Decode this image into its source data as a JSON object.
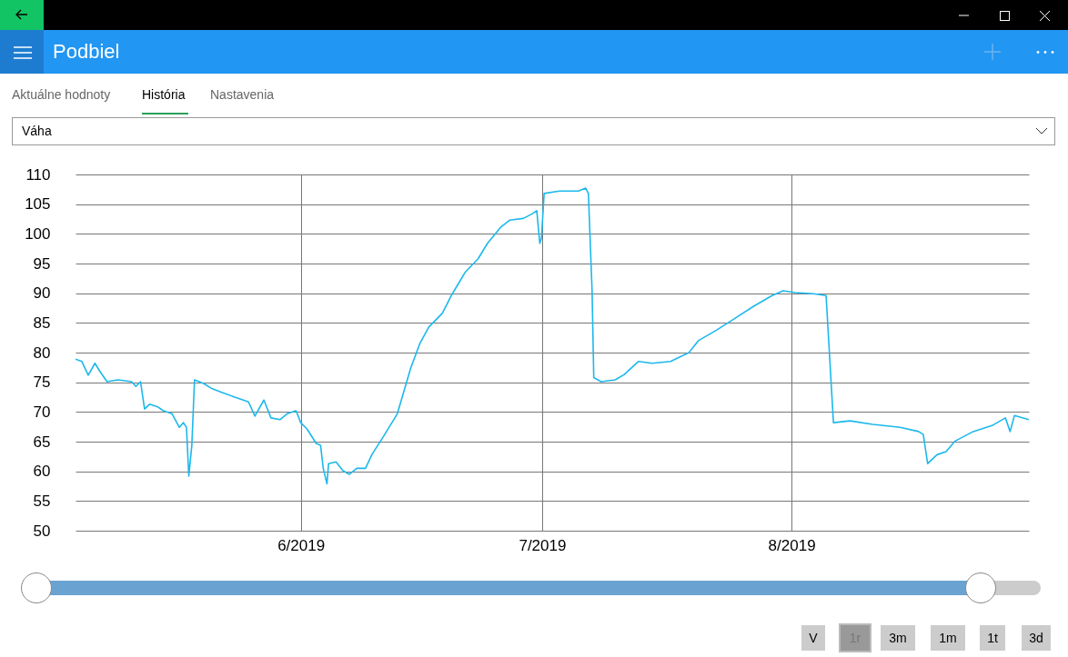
{
  "chart_data": {
    "type": "line",
    "title": "Podbiel",
    "subtitle": "Váha",
    "annotations": [
      "Aktuálne hodnoty",
      "História",
      "Nastavenia",
      "V",
      "1r",
      "3m",
      "1m",
      "1t",
      "3d"
    ],
    "xlim": [
      "2019-05-04",
      "2019-08-30T12:00"
    ],
    "xticks": [
      {
        "value": "2019-06-01",
        "label": "6/2019"
      },
      {
        "value": "2019-07-01",
        "label": "7/2019"
      },
      {
        "value": "2019-08-01",
        "label": "8/2019"
      }
    ],
    "ylim": [
      50,
      110
    ],
    "yticks": [
      50,
      55,
      60,
      65,
      70,
      75,
      80,
      85,
      90,
      95,
      100,
      105,
      110
    ],
    "grid": true,
    "x": [
      "2019-05-04",
      "2019-05-04T19:00",
      "2019-05-05T14:00",
      "2019-05-06T10:00",
      "2019-05-07",
      "2019-05-07T22:00",
      "2019-05-09T07:00",
      "2019-05-10T23:00",
      "2019-05-11T12:00",
      "2019-05-12T02:00",
      "2019-05-12T14:00",
      "2019-05-13T05:00",
      "2019-05-14T07:00",
      "2019-05-14T22:00",
      "2019-05-16",
      "2019-05-16T22:00",
      "2019-05-17T10:00",
      "2019-05-17T19:00",
      "2019-05-18T02:00",
      "2019-05-18T11:00",
      "2019-05-18T19:00",
      "2019-05-19T22:00",
      "2019-05-21",
      "2019-05-22T04:00",
      "2019-05-23T19:00",
      "2019-05-25T12:00",
      "2019-05-26T07:00",
      "2019-05-27T10:00",
      "2019-05-28T07:00",
      "2019-05-29T10:00",
      "2019-05-30T07:00",
      "2019-05-31T10:00",
      "2019-06-01",
      "2019-06-01T19:00",
      "2019-06-02T22:00",
      "2019-06-03T11:00",
      "2019-06-03T19:00",
      "2019-06-04T06:00",
      "2019-06-04T11:00",
      "2019-06-05T09:00",
      "2019-06-06T06:00",
      "2019-06-07T01:00",
      "2019-06-07T23:00",
      "2019-06-09T01:00",
      "2019-06-09T20:00",
      "2019-06-11T07:00",
      "2019-06-13",
      "2019-06-14T16:00",
      "2019-06-15T19:00",
      "2019-06-16T22:00",
      "2019-06-18T14:00",
      "2019-06-19T17:00",
      "2019-06-21T10:00",
      "2019-06-23T01:00",
      "2019-06-24T05:00",
      "2019-06-25T20:00",
      "2019-06-26T23:00",
      "2019-06-28T16:00",
      "2019-06-29T19:00",
      "2019-06-30T08:00",
      "2019-06-30T17:00",
      "2019-06-30T22:00",
      "2019-07-01T06:00",
      "2019-07-03T04:00",
      "2019-07-05T12:00",
      "2019-07-06T10:00",
      "2019-07-06T18:00",
      "2019-07-07T05:00",
      "2019-07-07T10:00",
      "2019-07-08T08:00",
      "2019-07-10T02:00",
      "2019-07-11T05:00",
      "2019-07-12T23:00",
      "2019-07-14T16:00",
      "2019-07-16T23:00",
      "2019-07-19T06:00",
      "2019-07-20T10:00",
      "2019-07-22T17:00",
      "2019-07-25",
      "2019-07-27T07:00",
      "2019-07-29T14:00",
      "2019-07-30T23:00",
      "2019-08-01T11:00",
      "2019-08-03T17:00",
      "2019-08-05T07:00",
      "2019-08-05T18:00",
      "2019-08-06T05:00",
      "2019-08-08T06:00",
      "2019-08-11T02:00",
      "2019-08-14T12:00",
      "2019-08-16T19:00",
      "2019-08-17T09:00",
      "2019-08-17T22:00",
      "2019-08-19T02:00",
      "2019-08-20T05:00",
      "2019-08-21T08:00",
      "2019-08-23T14:00",
      "2019-08-25T22:00",
      "2019-08-27T14:00",
      "2019-08-28T04:00",
      "2019-08-28T17:00",
      "2019-08-30T12:00"
    ],
    "series": [
      {
        "color": "#1cb8ec",
        "values": [
          78.9,
          78.5,
          76.2,
          78.2,
          76.9,
          75.1,
          75.4,
          75.1,
          74.3,
          75.1,
          70.5,
          71.3,
          70.8,
          70.2,
          69.7,
          67.4,
          68.2,
          67.4,
          59.2,
          64.4,
          75.4,
          74.8,
          73.9,
          73.3,
          72.5,
          71.7,
          69.3,
          72.0,
          69.0,
          68.7,
          69.7,
          70.2,
          68.2,
          67.1,
          64.7,
          64.4,
          60.5,
          57.9,
          61.3,
          61.6,
          60.1,
          59.5,
          60.5,
          60.5,
          62.8,
          65.9,
          69.7,
          77.4,
          81.5,
          84.3,
          86.6,
          89.6,
          93.5,
          95.8,
          98.4,
          101.1,
          102.3,
          102.6,
          103.4,
          103.9,
          98.4,
          99.3,
          106.8,
          107.2,
          107.2,
          107.7,
          106.8,
          90.4,
          75.8,
          75.1,
          75.4,
          76.3,
          78.5,
          78.2,
          78.5,
          80.0,
          82.0,
          83.8,
          85.8,
          87.8,
          89.6,
          90.4,
          90.1,
          89.9,
          89.6,
          78.9,
          68.2,
          68.5,
          67.9,
          67.4,
          66.7,
          66.2,
          61.3,
          62.8,
          63.3,
          65.1,
          66.7,
          67.7,
          69.0,
          66.7,
          69.4,
          68.7
        ]
      }
    ]
  }
}
